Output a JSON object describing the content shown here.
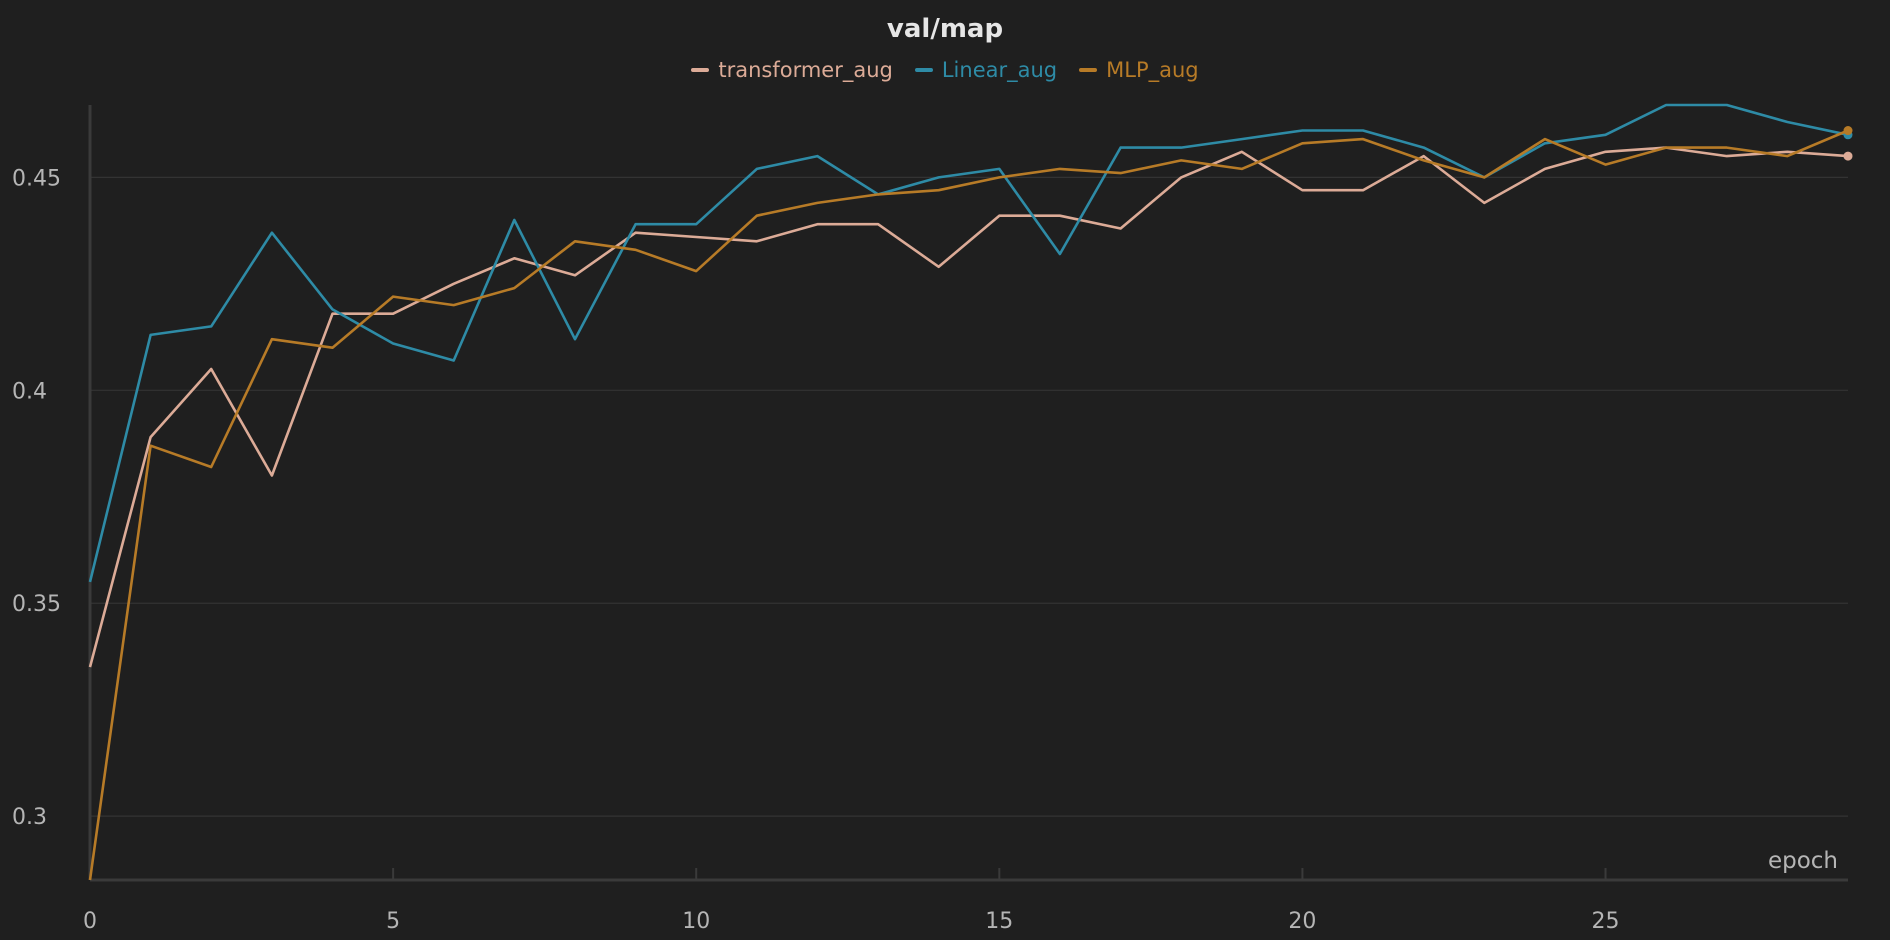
{
  "chart_data": {
    "type": "line",
    "title": "val/map",
    "xlabel": "epoch",
    "ylabel": "",
    "xlim": [
      0,
      29
    ],
    "ylim": [
      0.285,
      0.467
    ],
    "xticks": [
      0,
      5,
      10,
      15,
      20,
      25
    ],
    "yticks": [
      0.3,
      0.35,
      0.4,
      0.45
    ],
    "ytick_labels": [
      "0.3",
      "0.35",
      "0.4",
      "0.45"
    ],
    "grid": true,
    "legend_position": "top-center",
    "x": [
      0,
      1,
      2,
      3,
      4,
      5,
      6,
      7,
      8,
      9,
      10,
      11,
      12,
      13,
      14,
      15,
      16,
      17,
      18,
      19,
      20,
      21,
      22,
      23,
      24,
      25,
      26,
      27,
      28,
      29
    ],
    "series": [
      {
        "name": "transformer_aug",
        "color": "#dcab97",
        "values": [
          0.335,
          0.389,
          0.405,
          0.38,
          0.418,
          0.418,
          0.425,
          0.431,
          0.427,
          0.437,
          0.436,
          0.435,
          0.439,
          0.439,
          0.429,
          0.441,
          0.441,
          0.438,
          0.45,
          0.456,
          0.447,
          0.447,
          0.455,
          0.444,
          0.452,
          0.456,
          0.457,
          0.455,
          0.456,
          0.455
        ]
      },
      {
        "name": "Linear_aug",
        "color": "#2e8ba6",
        "values": [
          0.355,
          0.413,
          0.415,
          0.437,
          0.419,
          0.411,
          0.407,
          0.44,
          0.412,
          0.439,
          0.439,
          0.452,
          0.455,
          0.446,
          0.45,
          0.452,
          0.432,
          0.457,
          0.457,
          0.459,
          0.461,
          0.461,
          0.457,
          0.45,
          0.458,
          0.46,
          0.467,
          0.467,
          0.463,
          0.46
        ]
      },
      {
        "name": "MLP_aug",
        "color": "#b77b27",
        "values": [
          0.285,
          0.387,
          0.382,
          0.412,
          0.41,
          0.422,
          0.42,
          0.424,
          0.435,
          0.433,
          0.428,
          0.441,
          0.444,
          0.446,
          0.447,
          0.45,
          0.452,
          0.451,
          0.454,
          0.452,
          0.458,
          0.459,
          0.454,
          0.45,
          0.459,
          0.453,
          0.457,
          0.457,
          0.455,
          0.461
        ]
      }
    ]
  }
}
